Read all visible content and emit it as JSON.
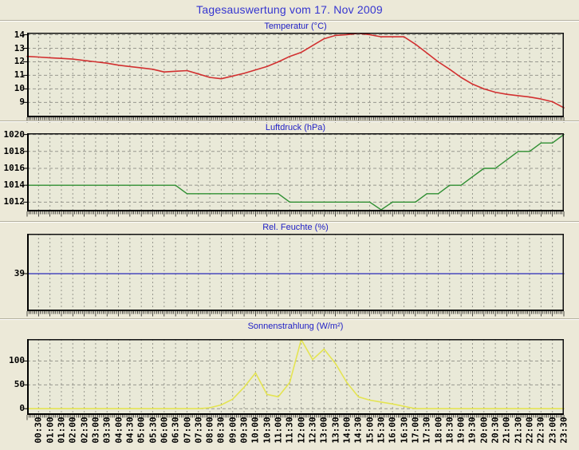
{
  "page": {
    "title": "Tagesauswertung vom 17. Nov 2009"
  },
  "colors": {
    "background": "#ece9d8",
    "plot_background": "#e9e9d8",
    "grid": "#98988e",
    "border_dark": "#111111",
    "axis_text": "#000000",
    "main_title": "#3535d0",
    "chart_title": "#2121c6"
  },
  "time_axis": {
    "start": "00:00",
    "end": "23:30",
    "interval_minutes": 30,
    "tick_labels": [
      "00:30",
      "01:00",
      "01:30",
      "02:00",
      "02:30",
      "03:00",
      "03:30",
      "04:00",
      "04:30",
      "05:00",
      "05:30",
      "06:00",
      "06:30",
      "07:00",
      "07:30",
      "08:00",
      "08:30",
      "09:00",
      "09:30",
      "10:00",
      "10:30",
      "11:00",
      "11:30",
      "12:00",
      "12:30",
      "13:00",
      "13:30",
      "14:00",
      "14:30",
      "15:00",
      "15:30",
      "16:00",
      "16:30",
      "17:00",
      "17:30",
      "18:00",
      "18:30",
      "19:00",
      "19:30",
      "20:00",
      "20:30",
      "21:00",
      "21:30",
      "22:00",
      "22:30",
      "23:00",
      "23:30"
    ]
  },
  "chart_data": [
    {
      "type": "line",
      "title": "Temperatur (°C)",
      "series_name": "Temperatur",
      "unit": "°C",
      "color": "#d23030",
      "line_width": 1.6,
      "yticks": [
        14,
        13,
        12,
        11,
        10,
        9
      ],
      "ylim": [
        7.9,
        14.15
      ],
      "x_start": "00:00",
      "x_interval_minutes": 30,
      "values": [
        12.4,
        12.35,
        12.3,
        12.25,
        12.2,
        12.1,
        12.0,
        11.9,
        11.75,
        11.65,
        11.55,
        11.45,
        11.25,
        11.3,
        11.35,
        11.1,
        10.85,
        10.75,
        10.95,
        11.15,
        11.4,
        11.65,
        12.0,
        12.4,
        12.7,
        13.2,
        13.7,
        13.95,
        14.0,
        14.1,
        14.0,
        13.85,
        13.85,
        13.85,
        13.3,
        12.65,
        12.0,
        11.45,
        10.85,
        10.35,
        10.0,
        9.75,
        9.6,
        9.5,
        9.4,
        9.25,
        9.05,
        8.6
      ]
    },
    {
      "type": "line",
      "title": "Luftdruck (hPa)",
      "series_name": "Luftdruck",
      "unit": "hPa",
      "color": "#2f8f32",
      "line_width": 1.4,
      "yticks": [
        1020,
        1018,
        1016,
        1014,
        1012
      ],
      "ylim": [
        1010.9,
        1020.15
      ],
      "x_start": "00:00",
      "x_interval_minutes": 30,
      "values": [
        1014,
        1014,
        1014,
        1014,
        1014,
        1014,
        1014,
        1014,
        1014,
        1014,
        1014,
        1014,
        1014,
        1014,
        1013,
        1013,
        1013,
        1013,
        1013,
        1013,
        1013,
        1013,
        1013,
        1012,
        1012,
        1012,
        1012,
        1012,
        1012,
        1012,
        1012,
        1011.1,
        1012,
        1012,
        1012,
        1013,
        1013,
        1014,
        1014,
        1015,
        1016,
        1016,
        1017,
        1018,
        1018,
        1019,
        1019,
        1020
      ]
    },
    {
      "type": "line",
      "title": "Rel. Feuchte (%)",
      "series_name": "Rel. Feuchte",
      "unit": "%",
      "color": "#2a2ab8",
      "line_width": 1.2,
      "yticks": [
        39
      ],
      "ylim": [
        34.2,
        44.1
      ],
      "x_start": "00:00",
      "x_interval_minutes": 30,
      "values": [
        39,
        39,
        39,
        39,
        39,
        39,
        39,
        39,
        39,
        39,
        39,
        39,
        39,
        39,
        39,
        39,
        39,
        39,
        39,
        39,
        39,
        39,
        39,
        39,
        39,
        39,
        39,
        39,
        39,
        39,
        39,
        39,
        39,
        39,
        39,
        39,
        39,
        39,
        39,
        39,
        39,
        39,
        39,
        39,
        39,
        39,
        39,
        39
      ]
    },
    {
      "type": "line",
      "title": "Sonnenstrahlung (W/m²)",
      "series_name": "Sonnenstrahlung",
      "unit": "W/m²",
      "color": "#e4e452",
      "line_width": 1.6,
      "yticks": [
        100,
        50,
        0
      ],
      "ylim": [
        -13,
        146
      ],
      "x_start": "00:00",
      "x_interval_minutes": 30,
      "values": [
        0,
        0,
        0,
        0,
        0,
        0,
        0,
        0,
        0,
        0,
        0,
        0,
        0,
        0,
        0,
        0,
        2,
        8,
        20,
        45,
        75,
        30,
        25,
        55,
        145,
        103,
        125,
        95,
        55,
        25,
        18,
        14,
        10,
        5,
        0,
        0,
        0,
        0,
        0,
        0,
        0,
        0,
        0,
        0,
        0,
        0,
        0,
        0
      ]
    }
  ]
}
